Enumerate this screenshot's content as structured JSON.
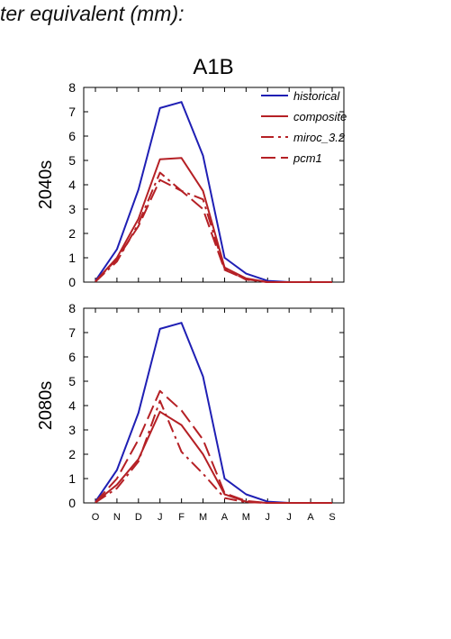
{
  "caption": "ter equivalent (mm):",
  "figure_title": "A1B",
  "colors": {
    "historical": "#1f1fb4",
    "scenario": "#b52025",
    "axis": "#000000"
  },
  "chart_data": [
    {
      "type": "line",
      "panel_label": "2040s",
      "categories": [
        "O",
        "N",
        "D",
        "J",
        "F",
        "M",
        "A",
        "M",
        "J",
        "J",
        "A",
        "S"
      ],
      "ylim": [
        0,
        8
      ],
      "yticks": [
        0,
        1,
        2,
        3,
        4,
        5,
        6,
        7,
        8
      ],
      "legend": "top-right",
      "series": [
        {
          "name": "historical",
          "style": "solid",
          "color": "#1f1fb4",
          "values": [
            0.05,
            1.35,
            3.8,
            7.15,
            7.4,
            5.2,
            1.0,
            0.35,
            0.05,
            0.0,
            0.0,
            0.0
          ]
        },
        {
          "name": "composite",
          "style": "solid",
          "color": "#b52025",
          "values": [
            0.03,
            1.0,
            2.6,
            5.05,
            5.1,
            3.75,
            0.6,
            0.15,
            0.0,
            0.0,
            0.0,
            0.0
          ]
        },
        {
          "name": "miroc_3.2",
          "style": "dashdot",
          "color": "#b52025",
          "values": [
            0.02,
            0.85,
            2.4,
            4.5,
            3.75,
            3.4,
            0.55,
            0.1,
            0.0,
            0.0,
            0.0,
            0.0
          ]
        },
        {
          "name": "pcm1",
          "style": "dashed",
          "color": "#b52025",
          "values": [
            0.03,
            0.95,
            2.3,
            4.2,
            3.75,
            3.0,
            0.5,
            0.12,
            0.0,
            0.0,
            0.0,
            0.0
          ]
        }
      ]
    },
    {
      "type": "line",
      "panel_label": "2080s",
      "categories": [
        "O",
        "N",
        "D",
        "J",
        "F",
        "M",
        "A",
        "M",
        "J",
        "J",
        "A",
        "S"
      ],
      "ylim": [
        0,
        8
      ],
      "yticks": [
        0,
        1,
        2,
        3,
        4,
        5,
        6,
        7,
        8
      ],
      "series": [
        {
          "name": "historical",
          "style": "solid",
          "color": "#1f1fb4",
          "values": [
            0.05,
            1.35,
            3.7,
            7.15,
            7.4,
            5.2,
            1.0,
            0.35,
            0.05,
            0.0,
            0.0,
            0.0
          ]
        },
        {
          "name": "composite",
          "style": "solid",
          "color": "#b52025",
          "values": [
            0.03,
            0.75,
            1.8,
            3.75,
            3.2,
            2.0,
            0.35,
            0.05,
            0.0,
            0.0,
            0.0,
            0.0
          ]
        },
        {
          "name": "miroc_3.2",
          "style": "dashdot",
          "color": "#b52025",
          "values": [
            0.02,
            0.6,
            1.7,
            4.2,
            2.1,
            1.2,
            0.2,
            0.03,
            0.0,
            0.0,
            0.0,
            0.0
          ]
        },
        {
          "name": "pcm1",
          "style": "dashed",
          "color": "#b52025",
          "values": [
            0.03,
            1.0,
            2.6,
            4.6,
            3.8,
            2.6,
            0.4,
            0.08,
            0.0,
            0.0,
            0.0,
            0.0
          ]
        }
      ]
    }
  ]
}
